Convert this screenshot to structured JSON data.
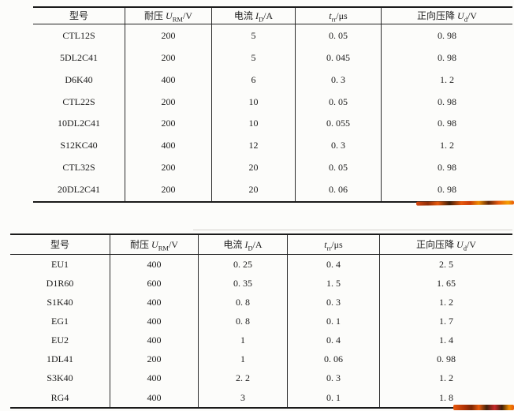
{
  "page": {
    "background_color": "#fcfcfa",
    "highlight_color_primary": "#e8590c",
    "highlight_color_secondary": "#c92a2a"
  },
  "tables": [
    {
      "title": "fast-diode-specs-upper",
      "columns": [
        {
          "pre": "型号",
          "sym": "",
          "sub": "",
          "suf": ""
        },
        {
          "pre": "耐压 ",
          "sym": "U",
          "sub": "RM",
          "suf": "/V"
        },
        {
          "pre": "电流 ",
          "sym": "I",
          "sub": "D",
          "suf": "/A"
        },
        {
          "pre": "",
          "sym": "t",
          "sub": "rr",
          "suf": "/μs"
        },
        {
          "pre": "正向压降 ",
          "sym": "U",
          "sub": "d",
          "suf": "/V"
        }
      ],
      "rows": [
        [
          "CTL12S",
          "200",
          "5",
          "0. 05",
          "0. 98"
        ],
        [
          "5DL2C41",
          "200",
          "5",
          "0. 045",
          "0. 98"
        ],
        [
          "D6K40",
          "400",
          "6",
          "0. 3",
          "1. 2"
        ],
        [
          "CTL22S",
          "200",
          "10",
          "0. 05",
          "0. 98"
        ],
        [
          "10DL2C41",
          "200",
          "10",
          "0. 055",
          "0. 98"
        ],
        [
          "S12KC40",
          "400",
          "12",
          "0. 3",
          "1. 2"
        ],
        [
          "CTL32S",
          "200",
          "20",
          "0. 05",
          "0. 98"
        ],
        [
          "20DL2C41",
          "200",
          "20",
          "0. 06",
          "0. 98"
        ]
      ]
    },
    {
      "title": "diode-specs-lower",
      "columns": [
        {
          "pre": "型号",
          "sym": "",
          "sub": "",
          "suf": ""
        },
        {
          "pre": "耐压 ",
          "sym": "U",
          "sub": "RM",
          "suf": "/V"
        },
        {
          "pre": "电流 ",
          "sym": "I",
          "sub": "D",
          "suf": "/A"
        },
        {
          "pre": "",
          "sym": "t",
          "sub": "rr",
          "suf": "/μs"
        },
        {
          "pre": "正向压降 ",
          "sym": "U",
          "sub": "d",
          "suf": "/V"
        }
      ],
      "rows": [
        [
          "EU1",
          "400",
          "0. 25",
          "0. 4",
          "2. 5"
        ],
        [
          "D1R60",
          "600",
          "0. 35",
          "1. 5",
          "1. 65"
        ],
        [
          "S1K40",
          "400",
          "0. 8",
          "0. 3",
          "1. 2"
        ],
        [
          "EG1",
          "400",
          "0. 8",
          "0. 1",
          "1. 7"
        ],
        [
          "EU2",
          "400",
          "1",
          "0. 4",
          "1. 4"
        ],
        [
          "1DL41",
          "200",
          "1",
          "0. 06",
          "0. 98"
        ],
        [
          "S3K40",
          "400",
          "2. 2",
          "0. 3",
          "1. 2"
        ],
        [
          "RG4",
          "400",
          "3",
          "0. 1",
          "1. 8"
        ]
      ]
    }
  ]
}
